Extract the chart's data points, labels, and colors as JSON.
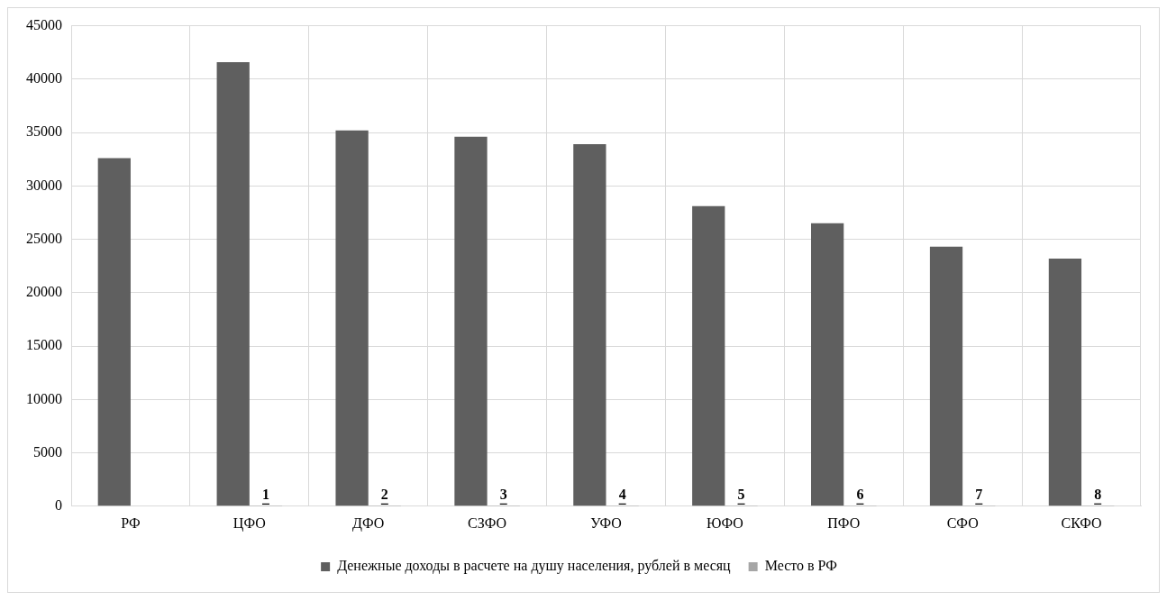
{
  "chart_data": {
    "type": "bar",
    "categories": [
      "РФ",
      "ЦФО",
      "ДФО",
      "СЗФО",
      "УФО",
      "ЮФО",
      "ПФО",
      "СФО",
      "СКФО"
    ],
    "series": [
      {
        "name": "Денежные доходы в расчете на душу населения, рублей в месяц",
        "color": "#5f5f5f",
        "values": [
          32600,
          41600,
          35200,
          34600,
          33900,
          28100,
          26500,
          24300,
          23200
        ]
      },
      {
        "name": "Место в РФ",
        "color": "#a6a6a6",
        "values": [
          null,
          1,
          2,
          3,
          4,
          5,
          6,
          7,
          8
        ],
        "value_labels": [
          null,
          "1",
          "2",
          "3",
          "4",
          "5",
          "6",
          "7",
          "8"
        ]
      }
    ],
    "ylim": [
      0,
      45000
    ],
    "yticks": [
      0,
      5000,
      10000,
      15000,
      20000,
      25000,
      30000,
      35000,
      40000,
      45000
    ],
    "grid": true,
    "legend": "bottom"
  }
}
